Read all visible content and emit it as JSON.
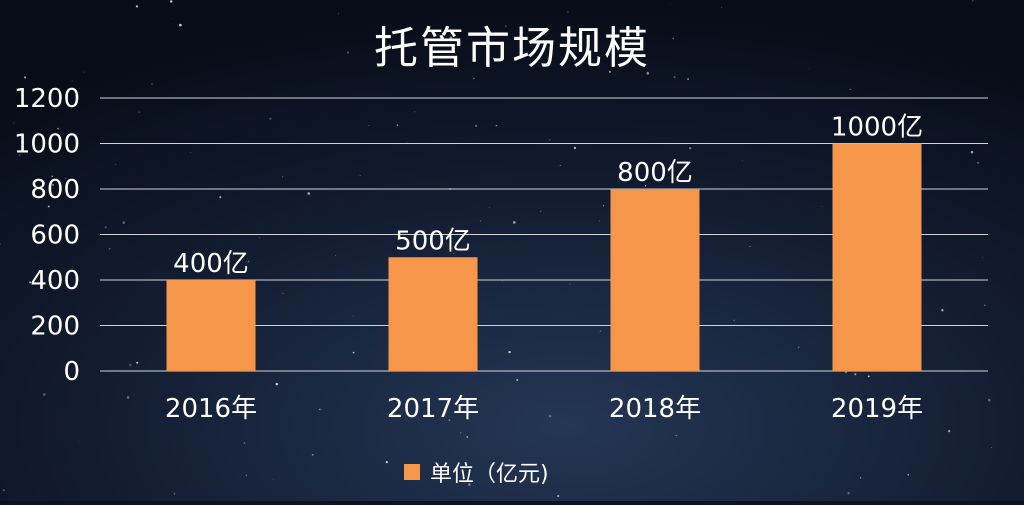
{
  "chart_data": {
    "type": "bar",
    "title": "托管市场规模",
    "categories": [
      "2016年",
      "2017年",
      "2018年",
      "2019年"
    ],
    "series": [
      {
        "name": "单位（亿元)",
        "values": [
          400,
          500,
          800,
          1000
        ],
        "labels": [
          "400亿",
          "500亿",
          "800亿",
          "1000亿"
        ]
      }
    ],
    "y_ticks": [
      "0",
      "200",
      "400",
      "600",
      "800",
      "1000",
      "1200"
    ],
    "ylim": [
      0,
      1200
    ],
    "grid": true,
    "legend_position": "bottom",
    "colors": {
      "bar": "#f5964a",
      "grid": "#d0d4da",
      "text": "#ffffff",
      "background_top": "#0b1322",
      "background_bottom": "#1e2d48"
    }
  }
}
